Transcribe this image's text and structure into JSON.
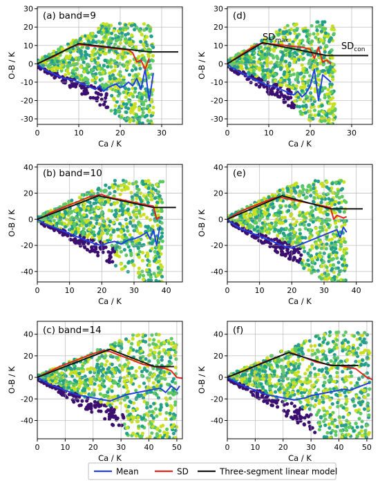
{
  "colors": {
    "mean": "#1f3fe0",
    "sd": "#e5231c",
    "model": "#111111",
    "scatter_dark": "#3b0f70",
    "scatter_mid": "#2a9d8f",
    "scatter_teal": "#1fa187",
    "scatter_green": "#5ec962",
    "scatter_yellow": "#c8e020"
  },
  "legend": {
    "placement": "bottom-center",
    "mean_label": "Mean",
    "sd_label": "SD",
    "model_label": "Three-segment linear model"
  },
  "chart_data": [
    {
      "id": "a",
      "type": "scatter",
      "panel_label": "(a) band=9",
      "xlabel": "Ca / K",
      "ylabel": "O-B / K",
      "xlim": [
        0,
        35
      ],
      "ylim": [
        -33,
        31
      ],
      "xticks": [
        0,
        10,
        20,
        30
      ],
      "yticks": [
        -30,
        -20,
        -10,
        0,
        10,
        20,
        30
      ],
      "grid": true,
      "scatter": {
        "x_max": 28,
        "upper_slope": 1.25,
        "upper_cap": 22,
        "lower_slope": -1.35,
        "lower_cap": -33
      },
      "series": [
        {
          "name": "Mean",
          "x": [
            0,
            1,
            2,
            3,
            4,
            5,
            6,
            7,
            8,
            9,
            10,
            11,
            12,
            13,
            14,
            15,
            16,
            17,
            18,
            19,
            20,
            21,
            22,
            23,
            24,
            25,
            26,
            27,
            28
          ],
          "values": [
            0,
            -2,
            -3.5,
            -4.5,
            -5.5,
            -6.5,
            -7.5,
            -8,
            -8.5,
            -9,
            -10,
            -11,
            -12,
            -13,
            -14,
            -12,
            -15,
            -13,
            -12,
            -11,
            -13,
            -12,
            -10,
            -12,
            -8,
            -14,
            -3,
            -20,
            -5
          ]
        },
        {
          "name": "SD",
          "x": [
            0,
            2,
            4,
            6,
            8,
            10,
            12,
            14,
            16,
            18,
            20,
            22,
            23,
            24,
            25,
            26,
            27
          ],
          "values": [
            0,
            2,
            4,
            6.5,
            9,
            10.5,
            10,
            9.5,
            9,
            8.5,
            8,
            7.5,
            6,
            1,
            2,
            -3,
            3
          ]
        },
        {
          "name": "Three-segment linear model",
          "x": [
            0,
            10,
            27,
            34
          ],
          "values": [
            0,
            11,
            6.5,
            6.5
          ]
        }
      ]
    },
    {
      "id": "d",
      "type": "scatter",
      "panel_label": "(d)",
      "xlabel": "Ca / K",
      "ylabel": "O-B / K",
      "xlim": [
        0,
        35
      ],
      "ylim": [
        -33,
        31
      ],
      "xticks": [
        0,
        10,
        20,
        30
      ],
      "yticks": [
        -30,
        -20,
        -10,
        0,
        10,
        20,
        30
      ],
      "grid": true,
      "annotations": [
        {
          "text": "SD",
          "sub": "max",
          "x": 8.5,
          "y": 13
        },
        {
          "text": "SD",
          "sub": "con",
          "x": 27.5,
          "y": 8
        }
      ],
      "scatter": {
        "x_max": 26,
        "upper_slope": 1.3,
        "upper_cap": 23,
        "lower_slope": -1.45,
        "lower_cap": -33
      },
      "series": [
        {
          "name": "Mean",
          "x": [
            0,
            1,
            2,
            3,
            4,
            5,
            6,
            7,
            8,
            9,
            10,
            11,
            12,
            13,
            14,
            15,
            16,
            17,
            18,
            19,
            20,
            21,
            22,
            23,
            24,
            25
          ],
          "values": [
            0,
            -2,
            -3,
            -4.5,
            -5.5,
            -7,
            -8,
            -9,
            -10,
            -11,
            -12,
            -12,
            -13,
            -14,
            -15,
            -16,
            -17,
            -15,
            -18,
            -16,
            -12,
            -3,
            -20,
            -6,
            -8,
            -10
          ]
        },
        {
          "name": "SD",
          "x": [
            0,
            2,
            4,
            6,
            8,
            10,
            12,
            14,
            16,
            18,
            20,
            21,
            22,
            23,
            24,
            25
          ],
          "values": [
            0,
            3,
            6,
            9,
            11,
            11,
            10.5,
            10,
            9.5,
            9,
            8,
            3,
            9,
            1,
            2,
            0
          ]
        },
        {
          "name": "Three-segment linear model",
          "x": [
            0,
            8.5,
            24,
            34
          ],
          "values": [
            0,
            11.5,
            4.5,
            4.5
          ]
        }
      ]
    },
    {
      "id": "b",
      "type": "scatter",
      "panel_label": "(b) band=10",
      "xlabel": "Ca / K",
      "ylabel": "O-B / K",
      "xlim": [
        0,
        45
      ],
      "ylim": [
        -48,
        42
      ],
      "xticks": [
        0,
        10,
        20,
        30,
        40
      ],
      "yticks": [
        -40,
        -20,
        0,
        20,
        40
      ],
      "grid": true,
      "scatter": {
        "x_max": 39,
        "upper_slope": 1.2,
        "upper_cap": 30,
        "lower_slope": -1.4,
        "lower_cap": -48
      },
      "series": [
        {
          "name": "Mean",
          "x": [
            0,
            2,
            4,
            6,
            8,
            10,
            12,
            14,
            16,
            18,
            20,
            22,
            24,
            26,
            28,
            30,
            32,
            34,
            35,
            36,
            37,
            38
          ],
          "values": [
            0,
            -3,
            -5,
            -7,
            -9,
            -11,
            -13,
            -15,
            -17,
            -19,
            -20,
            -18,
            -17,
            -19,
            -16,
            -15,
            -13,
            -10,
            -15,
            -8,
            -20,
            -6
          ]
        },
        {
          "name": "SD",
          "x": [
            0,
            2,
            4,
            6,
            8,
            10,
            12,
            14,
            16,
            18,
            20,
            22,
            24,
            26,
            28,
            30,
            32,
            34,
            36,
            37,
            38
          ],
          "values": [
            0,
            2,
            5,
            7,
            9,
            11,
            13,
            15,
            17,
            18,
            19,
            17,
            16,
            15,
            14,
            13,
            12,
            11,
            10,
            0,
            2
          ]
        },
        {
          "name": "Three-segment linear model",
          "x": [
            0,
            19,
            36,
            43
          ],
          "values": [
            0,
            18,
            9,
            9
          ]
        }
      ]
    },
    {
      "id": "e",
      "type": "scatter",
      "panel_label": "(e)",
      "xlabel": "Ca / K",
      "ylabel": "O-B / K",
      "xlim": [
        0,
        45
      ],
      "ylim": [
        -48,
        42
      ],
      "xticks": [
        0,
        10,
        20,
        30,
        40
      ],
      "yticks": [
        -40,
        -20,
        0,
        20,
        40
      ],
      "grid": true,
      "scatter": {
        "x_max": 37,
        "upper_slope": 1.25,
        "upper_cap": 30,
        "lower_slope": -1.5,
        "lower_cap": -48
      },
      "series": [
        {
          "name": "Mean",
          "x": [
            0,
            2,
            4,
            6,
            8,
            10,
            12,
            14,
            16,
            18,
            20,
            22,
            24,
            26,
            28,
            30,
            32,
            34,
            35,
            36,
            37
          ],
          "values": [
            0,
            -4,
            -7,
            -9,
            -11,
            -13,
            -15,
            -17,
            -19,
            -21,
            -22,
            -20,
            -18,
            -16,
            -14,
            -12,
            -10,
            -8,
            -14,
            -6,
            -10
          ]
        },
        {
          "name": "SD",
          "x": [
            0,
            2,
            4,
            6,
            8,
            10,
            12,
            14,
            16,
            18,
            20,
            22,
            24,
            26,
            28,
            30,
            32,
            33,
            34,
            36,
            37
          ],
          "values": [
            0,
            3,
            6,
            8,
            10,
            12,
            14,
            16,
            17,
            16,
            15,
            14,
            13,
            12,
            11,
            10,
            9,
            0,
            3,
            1,
            2
          ]
        },
        {
          "name": "Three-segment linear model",
          "x": [
            0,
            17,
            32,
            42
          ],
          "values": [
            0,
            18,
            8,
            8
          ]
        }
      ]
    },
    {
      "id": "c",
      "type": "scatter",
      "panel_label": "(c) band=14",
      "xlabel": "Ca / K",
      "ylabel": "O-B / K",
      "xlim": [
        0,
        52
      ],
      "ylim": [
        -57,
        52
      ],
      "xticks": [
        0,
        10,
        20,
        30,
        40,
        50
      ],
      "yticks": [
        -40,
        -20,
        0,
        20,
        40
      ],
      "grid": true,
      "scatter": {
        "x_max": 50,
        "upper_slope": 1.1,
        "upper_cap": 40,
        "lower_slope": -1.6,
        "lower_cap": -57
      },
      "series": [
        {
          "name": "Mean",
          "x": [
            0,
            2,
            4,
            6,
            8,
            10,
            12,
            14,
            16,
            18,
            20,
            22,
            24,
            26,
            28,
            30,
            32,
            34,
            36,
            38,
            40,
            42,
            44,
            46,
            48,
            50,
            51
          ],
          "values": [
            0,
            -3,
            -6,
            -8,
            -10,
            -12,
            -14,
            -16,
            -17,
            -18,
            -19,
            -20,
            -21,
            -22,
            -20,
            -18,
            -16,
            -15,
            -14,
            -13,
            -12,
            -11,
            -10,
            -14,
            -8,
            -12,
            -8
          ]
        },
        {
          "name": "SD",
          "x": [
            0,
            4,
            8,
            12,
            16,
            20,
            24,
            26,
            28,
            30,
            32,
            34,
            36,
            38,
            40,
            42,
            44,
            46,
            48,
            50,
            52
          ],
          "values": [
            0,
            5,
            10,
            14,
            18,
            22,
            25,
            24,
            22,
            20,
            18,
            16,
            14,
            12,
            11,
            10,
            9,
            8,
            6,
            0,
            -1
          ]
        },
        {
          "name": "Three-segment linear model",
          "x": [
            0,
            26,
            42,
            49
          ],
          "values": [
            0,
            26,
            10,
            10
          ]
        }
      ]
    },
    {
      "id": "f",
      "type": "scatter",
      "panel_label": "(f)",
      "xlabel": "Ca / K",
      "ylabel": "O-B / K",
      "xlim": [
        0,
        52
      ],
      "ylim": [
        -57,
        52
      ],
      "xticks": [
        0,
        10,
        20,
        30,
        40,
        50
      ],
      "yticks": [
        -40,
        -20,
        0,
        20,
        40
      ],
      "grid": true,
      "scatter": {
        "x_max": 51,
        "upper_slope": 1.15,
        "upper_cap": 42,
        "lower_slope": -1.6,
        "lower_cap": -57
      },
      "series": [
        {
          "name": "Mean",
          "x": [
            0,
            2,
            4,
            6,
            8,
            10,
            12,
            14,
            16,
            18,
            20,
            22,
            24,
            26,
            28,
            30,
            32,
            34,
            36,
            38,
            40,
            42,
            44,
            46,
            48,
            50,
            51
          ],
          "values": [
            0,
            -3,
            -6,
            -8,
            -10,
            -12,
            -14,
            -16,
            -17,
            -18,
            -19,
            -20,
            -21,
            -20,
            -19,
            -17,
            -16,
            -15,
            -14,
            -13,
            -12,
            -11,
            -12,
            -10,
            -8,
            -6,
            -5
          ]
        },
        {
          "name": "SD",
          "x": [
            0,
            4,
            8,
            12,
            16,
            20,
            22,
            24,
            26,
            28,
            30,
            32,
            34,
            36,
            38,
            40,
            42,
            44,
            46,
            48,
            50,
            52
          ],
          "values": [
            0,
            4,
            8,
            13,
            17,
            21,
            23,
            22,
            20,
            18,
            16,
            14,
            13,
            12,
            11,
            11,
            10,
            9,
            8,
            4,
            0,
            -2
          ]
        },
        {
          "name": "Three-segment linear model",
          "x": [
            0,
            22,
            37,
            47
          ],
          "values": [
            0,
            23,
            11,
            11
          ]
        }
      ]
    }
  ]
}
